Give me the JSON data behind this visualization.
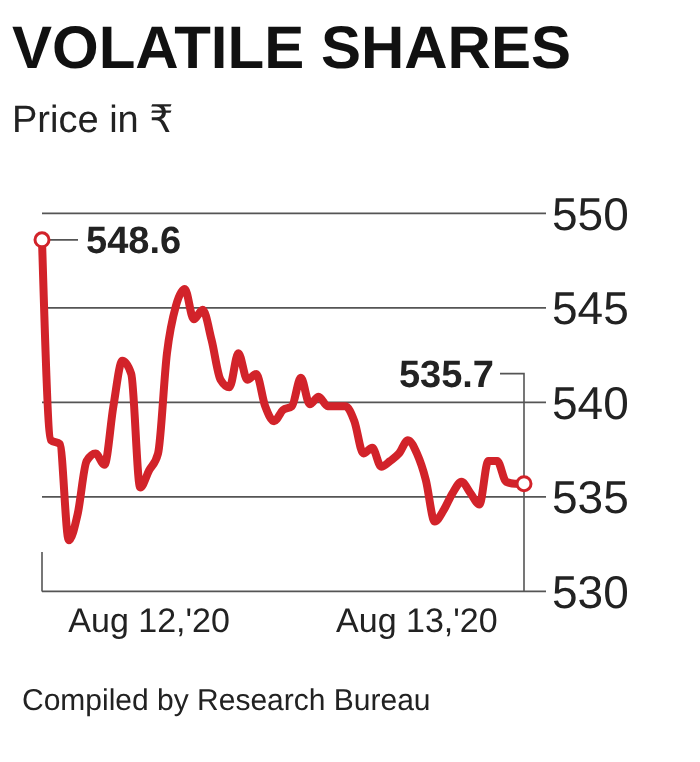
{
  "chart_data": {
    "type": "line",
    "title": "VOLATILE SHARES",
    "ylabel": "Price in ₹",
    "categories": [
      null,
      null,
      null,
      null,
      null,
      null,
      null,
      null,
      null,
      null,
      null,
      null,
      "Aug 12,'20",
      null,
      null,
      null,
      null,
      null,
      null,
      null,
      null,
      null,
      null,
      null,
      null,
      null,
      null,
      null,
      null,
      null,
      null,
      null,
      null,
      null,
      null,
      null,
      null,
      null,
      null,
      null,
      null,
      null,
      "Aug 13,'20",
      null,
      null,
      null,
      null,
      null,
      null,
      null,
      null,
      null,
      null,
      null,
      null
    ],
    "series": [
      {
        "color": "#d2232a",
        "values": [
          548.6,
          538.0,
          537.8,
          532.7,
          534.1,
          536.9,
          537.3,
          536.7,
          539.8,
          542.2,
          541.5,
          535.5,
          536.4,
          537.3,
          542.6,
          545.1,
          546.0,
          544.4,
          544.9,
          543.3,
          541.2,
          540.8,
          542.6,
          541.2,
          541.5,
          539.8,
          539.0,
          539.6,
          539.8,
          541.3,
          539.9,
          540.3,
          539.8,
          539.8,
          539.8,
          539.0,
          537.3,
          537.6,
          536.6,
          536.9,
          537.3,
          538.0,
          537.3,
          535.9,
          533.7,
          534.3,
          535.2,
          535.8,
          535.2,
          534.6,
          536.9,
          536.9,
          535.8,
          535.7,
          535.7
        ]
      }
    ],
    "ylim": [
      530,
      550
    ],
    "yticks": [
      530,
      535,
      540,
      545,
      550
    ],
    "grid": "y",
    "marker": "none",
    "line_style": "solid",
    "annotations": [
      "548.6",
      "535.7",
      "Compiled by Research Bureau"
    ]
  }
}
